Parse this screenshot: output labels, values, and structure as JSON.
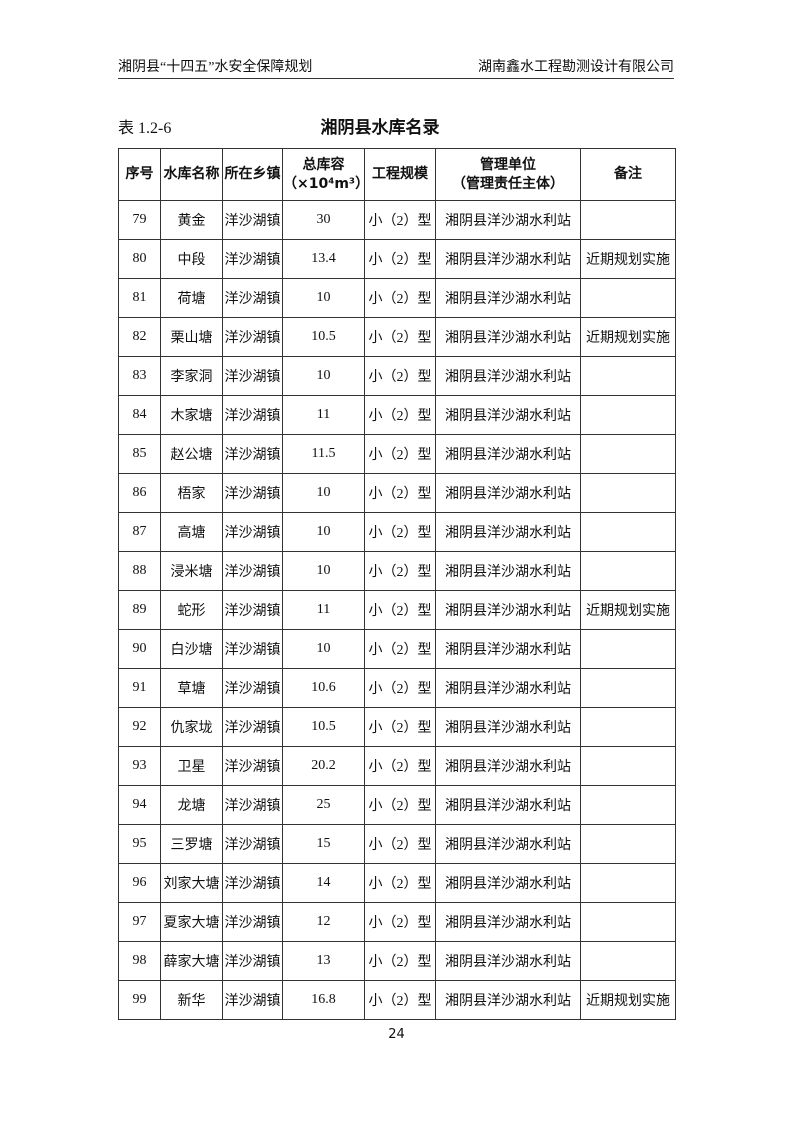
{
  "header": {
    "left": "湘阴县“十四五”水安全保障规划",
    "right": "湖南鑫水工程勘测设计有限公司"
  },
  "table_label": "表 1.2-6",
  "title": "湘阴县水库名录",
  "table": {
    "columns": [
      "序号",
      "水库名称",
      "所在乡镇",
      [
        "总库容",
        "（×10⁴m³）"
      ],
      "工程规模",
      [
        "管理单位",
        "（管理责任主体）"
      ],
      "备注"
    ],
    "rows": [
      [
        79,
        "黄金",
        "洋沙湖镇",
        30,
        "小（2）型",
        "湘阴县洋沙湖水利站",
        null
      ],
      [
        80,
        "中段",
        "洋沙湖镇",
        13.4,
        "小（2）型",
        "湘阴县洋沙湖水利站",
        "近期规划实施"
      ],
      [
        81,
        "荷塘",
        "洋沙湖镇",
        10,
        "小（2）型",
        "湘阴县洋沙湖水利站",
        null
      ],
      [
        82,
        "栗山塘",
        "洋沙湖镇",
        10.5,
        "小（2）型",
        "湘阴县洋沙湖水利站",
        "近期规划实施"
      ],
      [
        83,
        "李家洞",
        "洋沙湖镇",
        10,
        "小（2）型",
        "湘阴县洋沙湖水利站",
        null
      ],
      [
        84,
        "木家塘",
        "洋沙湖镇",
        11,
        "小（2）型",
        "湘阴县洋沙湖水利站",
        null
      ],
      [
        85,
        "赵公塘",
        "洋沙湖镇",
        11.5,
        "小（2）型",
        "湘阴县洋沙湖水利站",
        null
      ],
      [
        86,
        "梧家",
        "洋沙湖镇",
        10,
        "小（2）型",
        "湘阴县洋沙湖水利站",
        null
      ],
      [
        87,
        "高塘",
        "洋沙湖镇",
        10,
        "小（2）型",
        "湘阴县洋沙湖水利站",
        null
      ],
      [
        88,
        "浸米塘",
        "洋沙湖镇",
        10,
        "小（2）型",
        "湘阴县洋沙湖水利站",
        null
      ],
      [
        89,
        "蛇形",
        "洋沙湖镇",
        11,
        "小（2）型",
        "湘阴县洋沙湖水利站",
        "近期规划实施"
      ],
      [
        90,
        "白沙塘",
        "洋沙湖镇",
        10,
        "小（2）型",
        "湘阴县洋沙湖水利站",
        null
      ],
      [
        91,
        "草塘",
        "洋沙湖镇",
        10.6,
        "小（2）型",
        "湘阴县洋沙湖水利站",
        null
      ],
      [
        92,
        "仇家垅",
        "洋沙湖镇",
        10.5,
        "小（2）型",
        "湘阴县洋沙湖水利站",
        null
      ],
      [
        93,
        "卫星",
        "洋沙湖镇",
        20.2,
        "小（2）型",
        "湘阴县洋沙湖水利站",
        null
      ],
      [
        94,
        "龙塘",
        "洋沙湖镇",
        25,
        "小（2）型",
        "湘阴县洋沙湖水利站",
        null
      ],
      [
        95,
        "三罗塘",
        "洋沙湖镇",
        15,
        "小（2）型",
        "湘阴县洋沙湖水利站",
        null
      ],
      [
        96,
        "刘家大塘",
        "洋沙湖镇",
        14,
        "小（2）型",
        "湘阴县洋沙湖水利站",
        null
      ],
      [
        97,
        "夏家大塘",
        "洋沙湖镇",
        12,
        "小（2）型",
        "湘阴县洋沙湖水利站",
        null
      ],
      [
        98,
        "薛家大塘",
        "洋沙湖镇",
        13,
        "小（2）型",
        "湘阴县洋沙湖水利站",
        null
      ],
      [
        99,
        "新华",
        "洋沙湖镇",
        16.8,
        "小（2）型",
        "湘阴县洋沙湖水利站",
        "近期规划实施"
      ]
    ]
  },
  "page_number": "24"
}
